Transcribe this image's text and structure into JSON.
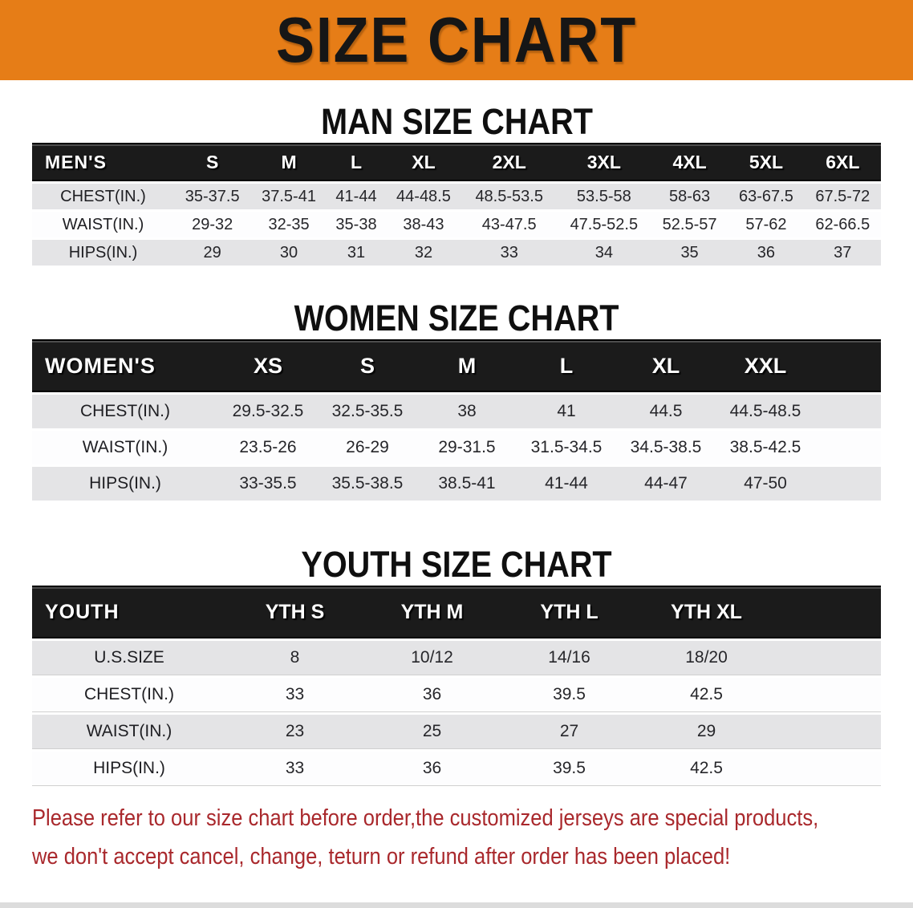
{
  "banner": {
    "title": "SIZE CHART"
  },
  "colors": {
    "banner_bg": "#e67d17",
    "table_header_bg": "#1b1b1b",
    "row_alt_bg": "#e4e4e6",
    "notice_text": "#a9282c"
  },
  "men": {
    "heading": "MAN SIZE CHART",
    "corner": "MEN'S",
    "sizes": [
      "S",
      "M",
      "L",
      "XL",
      "2XL",
      "3XL",
      "4XL",
      "5XL",
      "6XL"
    ],
    "rows": [
      {
        "label": "CHEST(IN.)",
        "values": [
          "35-37.5",
          "37.5-41",
          "41-44",
          "44-48.5",
          "48.5-53.5",
          "53.5-58",
          "58-63",
          "63-67.5",
          "67.5-72"
        ]
      },
      {
        "label": "WAIST(IN.)",
        "values": [
          "29-32",
          "32-35",
          "35-38",
          "38-43",
          "43-47.5",
          "47.5-52.5",
          "52.5-57",
          "57-62",
          "62-66.5"
        ]
      },
      {
        "label": "HIPS(IN.)",
        "values": [
          "29",
          "30",
          "31",
          "32",
          "33",
          "34",
          "35",
          "36",
          "37"
        ]
      }
    ]
  },
  "women": {
    "heading": "WOMEN SIZE CHART",
    "corner": "WOMEN'S",
    "sizes": [
      "XS",
      "S",
      "M",
      "L",
      "XL",
      "XXL"
    ],
    "rows": [
      {
        "label": "CHEST(IN.)",
        "values": [
          "29.5-32.5",
          "32.5-35.5",
          "38",
          "41",
          "44.5",
          "44.5-48.5"
        ]
      },
      {
        "label": "WAIST(IN.)",
        "values": [
          "23.5-26",
          "26-29",
          "29-31.5",
          "31.5-34.5",
          "34.5-38.5",
          "38.5-42.5"
        ]
      },
      {
        "label": "HIPS(IN.)",
        "values": [
          "33-35.5",
          "35.5-38.5",
          "38.5-41",
          "41-44",
          "44-47",
          "47-50"
        ]
      }
    ]
  },
  "youth": {
    "heading": "YOUTH SIZE CHART",
    "corner": "YOUTH",
    "sizes": [
      "YTH S",
      "YTH M",
      "YTH L",
      "YTH XL"
    ],
    "rows": [
      {
        "label": "U.S.SIZE",
        "values": [
          "8",
          "10/12",
          "14/16",
          "18/20"
        ]
      },
      {
        "label": "CHEST(IN.)",
        "values": [
          "33",
          "36",
          "39.5",
          "42.5"
        ]
      },
      {
        "label": "WAIST(IN.)",
        "values": [
          "23",
          "25",
          "27",
          "29"
        ]
      },
      {
        "label": "HIPS(IN.)",
        "values": [
          "33",
          "36",
          "39.5",
          "42.5"
        ]
      }
    ]
  },
  "notice": {
    "line1": "Please refer to our size chart before order,the customized jerseys are special products,",
    "line2": "we don't accept cancel, change, teturn or refund after order has been placed!"
  }
}
